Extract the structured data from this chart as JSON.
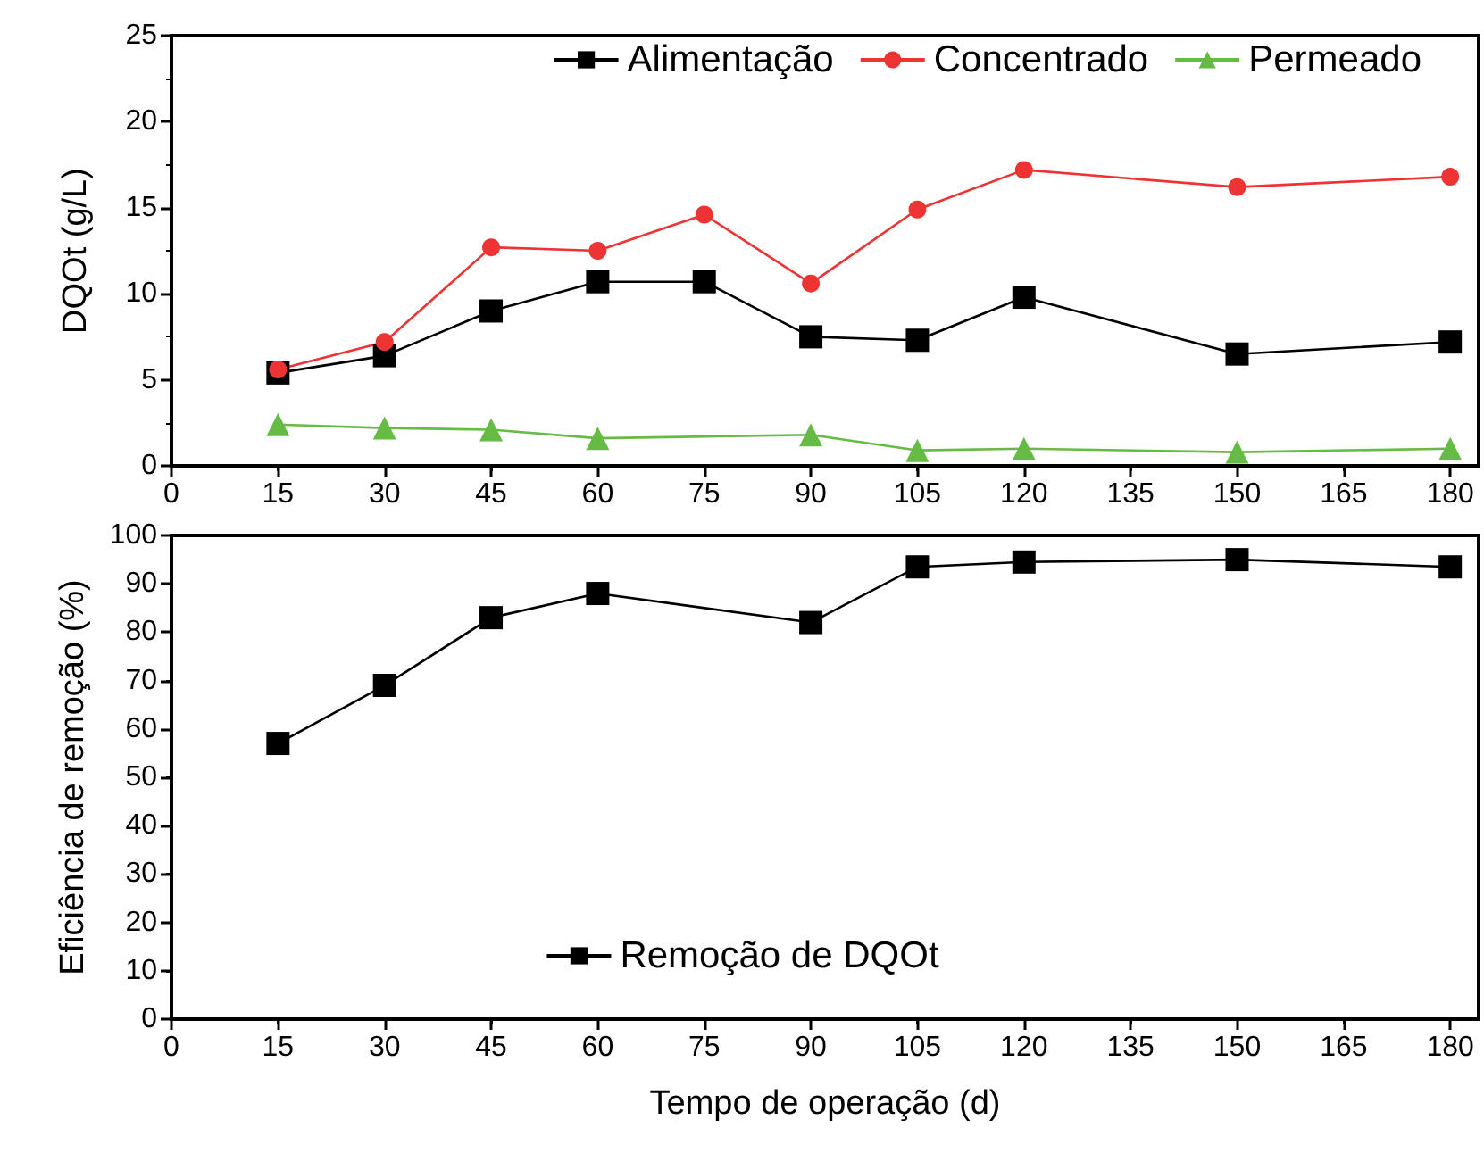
{
  "chart_data": [
    {
      "type": "line",
      "ylabel": "DQOt (g/L)",
      "xlim": [
        0,
        184
      ],
      "xticks": [
        0,
        15,
        30,
        45,
        60,
        75,
        90,
        105,
        120,
        135,
        150,
        165,
        180
      ],
      "ylim": [
        0,
        25
      ],
      "yticks": [
        0,
        5,
        10,
        15,
        20,
        25
      ],
      "grid": false,
      "legend": "top right",
      "line_style": "solid",
      "series": [
        {
          "name": "Alimentação",
          "color": "#000000",
          "marker": "square",
          "x": [
            15,
            30,
            45,
            60,
            75,
            90,
            105,
            120,
            150,
            180
          ],
          "values": [
            5.4,
            6.4,
            9.0,
            10.7,
            10.7,
            7.5,
            7.3,
            9.8,
            6.5,
            7.2
          ]
        },
        {
          "name": "Concentrado",
          "color": "#ee3333",
          "marker": "circle",
          "x": [
            15,
            30,
            45,
            60,
            75,
            90,
            105,
            120,
            150,
            180
          ],
          "values": [
            5.6,
            7.2,
            12.7,
            12.5,
            14.6,
            10.6,
            14.9,
            17.2,
            16.2,
            16.8
          ]
        },
        {
          "name": "Permeado",
          "color": "#66bb44",
          "marker": "triangle",
          "x": [
            15,
            30,
            45,
            60,
            90,
            105,
            120,
            150,
            180
          ],
          "values": [
            2.4,
            2.2,
            2.1,
            1.6,
            1.8,
            0.9,
            1.0,
            0.8,
            1.0
          ]
        }
      ]
    },
    {
      "type": "line",
      "xlabel": "Tempo de operação (d)",
      "ylabel": "Eficiência de remoção (%)",
      "xlim": [
        0,
        184
      ],
      "xticks": [
        0,
        15,
        30,
        45,
        60,
        75,
        90,
        105,
        120,
        135,
        150,
        165,
        180
      ],
      "ylim": [
        0,
        100
      ],
      "yticks": [
        0,
        10,
        20,
        30,
        40,
        50,
        60,
        70,
        80,
        90,
        100
      ],
      "grid": false,
      "legend": "bottom",
      "line_style": "solid",
      "series": [
        {
          "name": "Remoção de DQOt",
          "color": "#000000",
          "marker": "square",
          "x": [
            15,
            30,
            45,
            60,
            90,
            105,
            120,
            150,
            180
          ],
          "values": [
            57,
            69,
            83,
            88,
            82,
            93.5,
            94.5,
            95,
            93.5
          ]
        }
      ]
    }
  ]
}
